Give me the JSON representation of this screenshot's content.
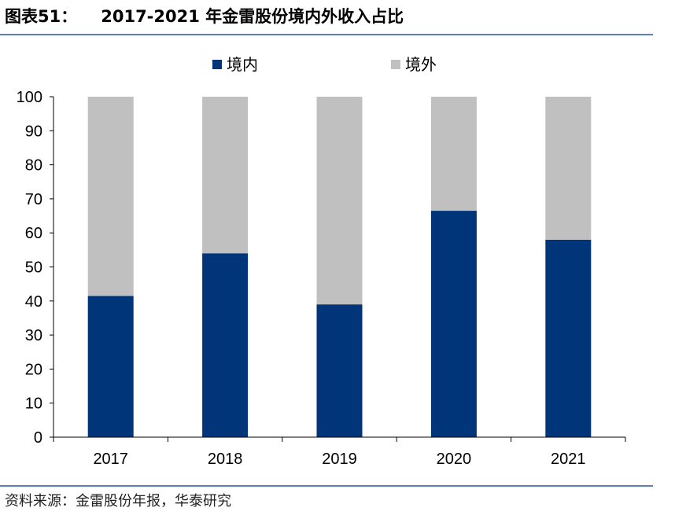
{
  "header": {
    "figure_number": "图表51：",
    "title": "2017-2021 年金雷股份境内外收入占比"
  },
  "footer": {
    "source": "资料来源：金雷股份年报，华泰研究"
  },
  "colors": {
    "domestic": "#00357a",
    "overseas": "#c0c0c0",
    "rule": "#5b7fb6"
  },
  "chart_data": {
    "type": "bar",
    "stacked": true,
    "categories": [
      "2017",
      "2018",
      "2019",
      "2020",
      "2021"
    ],
    "series": [
      {
        "name": "境内",
        "values": [
          41.5,
          54,
          39,
          66.5,
          58
        ]
      },
      {
        "name": "境外",
        "values": [
          58.5,
          46,
          61,
          33.5,
          42
        ]
      }
    ],
    "ylim": [
      0,
      100
    ],
    "yticks": [
      "0",
      "10",
      "20",
      "30",
      "40",
      "50",
      "60",
      "70",
      "80",
      "90",
      "100"
    ],
    "legend_position": "top-center",
    "grid": false
  }
}
